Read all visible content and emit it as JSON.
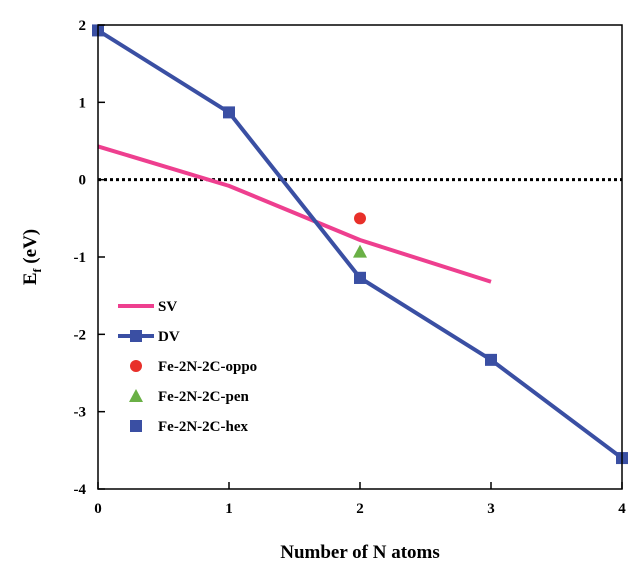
{
  "chart_data": {
    "type": "line",
    "title": "",
    "xlabel": "Number of N atoms",
    "ylabel": {
      "main": "E",
      "sub": "f",
      "unit": " (eV)"
    },
    "xlim": [
      0,
      4
    ],
    "ylim": [
      -4,
      2
    ],
    "xticks": [
      0,
      1,
      2,
      3,
      4
    ],
    "yticks": [
      -4,
      -3,
      -2,
      -1,
      0,
      1,
      2
    ],
    "grid": false,
    "legend_position": "lower-left",
    "reference_line": {
      "y": 0,
      "style": "dotted",
      "color": "#000000"
    },
    "series": [
      {
        "name": "SV",
        "kind": "line",
        "marker": "none",
        "color": "#ee3f8f",
        "x": [
          0,
          1,
          2,
          3
        ],
        "y": [
          0.43,
          -0.08,
          -0.78,
          -1.32
        ]
      },
      {
        "name": "DV",
        "kind": "line",
        "marker": "square",
        "color": "#3a4fa3",
        "x": [
          0,
          1,
          2,
          3,
          4
        ],
        "y": [
          1.93,
          0.87,
          -1.27,
          -2.33,
          -3.6
        ]
      },
      {
        "name": "Fe-2N-2C-oppo",
        "kind": "scatter",
        "marker": "circle",
        "color": "#e8302a",
        "x": [
          2
        ],
        "y": [
          -0.5
        ]
      },
      {
        "name": "Fe-2N-2C-pen",
        "kind": "scatter",
        "marker": "triangle",
        "color": "#6ab046",
        "x": [
          2
        ],
        "y": [
          -0.93
        ]
      },
      {
        "name": "Fe-2N-2C-hex",
        "kind": "scatter",
        "marker": "square",
        "color": "#3a4fa3",
        "x": [
          2
        ],
        "y": [
          -1.27
        ]
      }
    ]
  }
}
